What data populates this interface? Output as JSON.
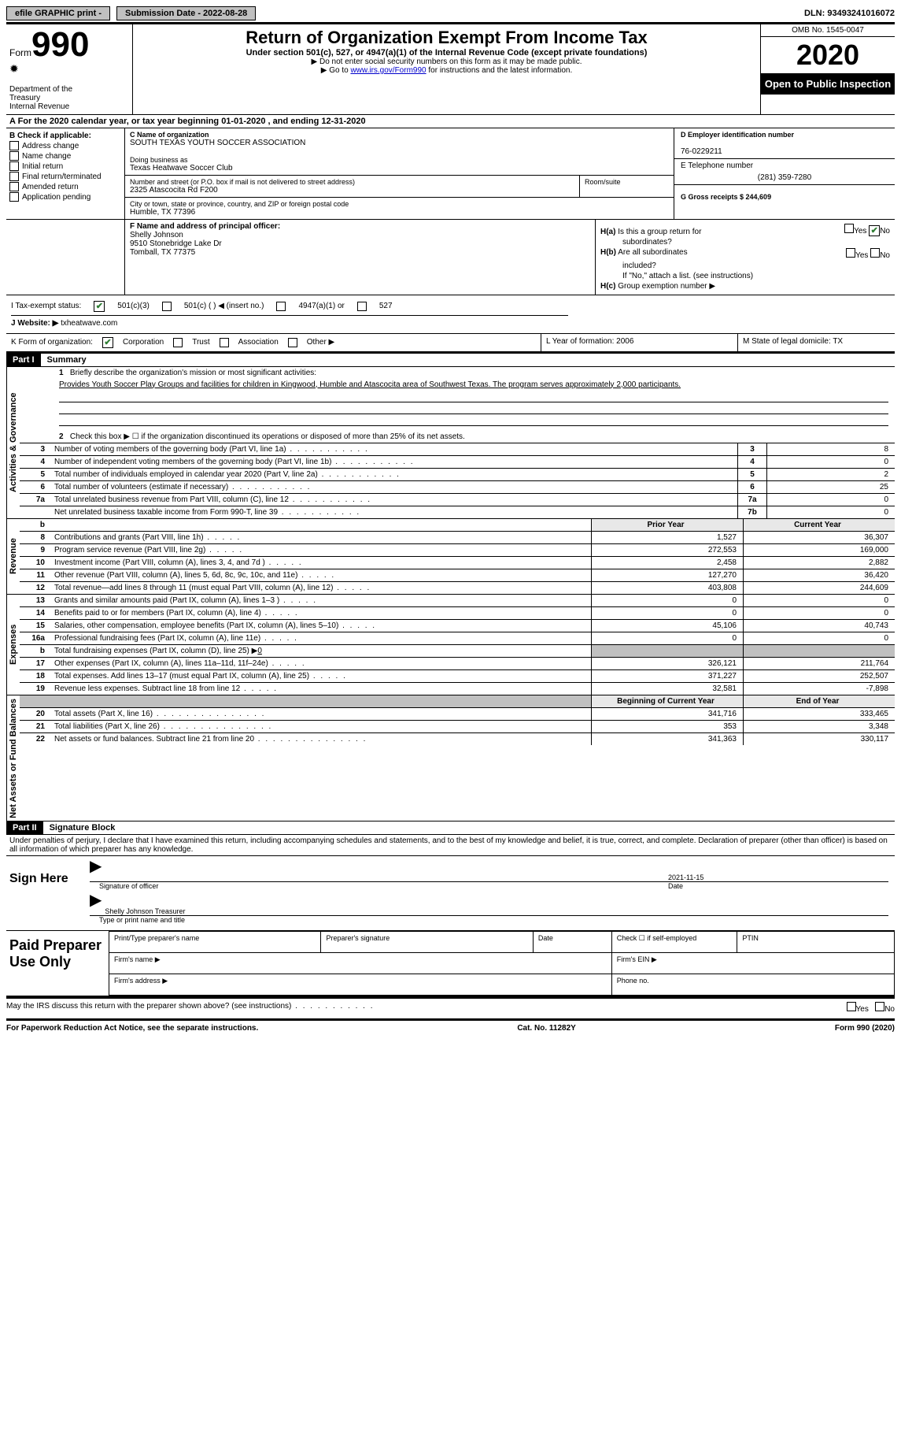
{
  "top": {
    "efile_label": "efile GRAPHIC print -",
    "submission_label": "Submission Date - 2022-08-28",
    "dln_label": "DLN: 93493241016072"
  },
  "header": {
    "form_word": "Form",
    "form_number": "990",
    "dept1": "Department of the",
    "dept2": "Treasury",
    "dept3": "Internal Revenue",
    "title": "Return of Organization Exempt From Income Tax",
    "subtitle": "Under section 501(c), 527, or 4947(a)(1) of the Internal Revenue Code (except private foundations)",
    "note1": "▶ Do not enter social security numbers on this form as it may be made public.",
    "note2a": "▶ Go to ",
    "note2_link": "www.irs.gov/Form990",
    "note2b": " for instructions and the latest information.",
    "omb": "OMB No. 1545-0047",
    "year": "2020",
    "open_public": "Open to Public Inspection"
  },
  "row_a": "A For the 2020 calendar year, or tax year beginning 01-01-2020    , and ending 12-31-2020",
  "block_b": {
    "title": "B Check if applicable:",
    "opts": [
      "Address change",
      "Name change",
      "Initial return",
      "Final return/terminated",
      "Amended return",
      "Application pending"
    ]
  },
  "block_c": {
    "name_label": "C Name of organization",
    "name": "SOUTH TEXAS YOUTH SOCCER ASSOCIATION",
    "dba_label": "Doing business as",
    "dba": "Texas Heatwave Soccer Club",
    "street_label": "Number and street (or P.O. box if mail is not delivered to street address)",
    "street": "2325 Atascocita Rd F200",
    "room_label": "Room/suite",
    "city_label": "City or town, state or province, country, and ZIP or foreign postal code",
    "city": "Humble, TX   77396"
  },
  "block_d": {
    "ein_label": "D Employer identification number",
    "ein": "76-0229211",
    "phone_label": "E Telephone number",
    "phone": "(281) 359-7280",
    "gross_label": "G Gross receipts $ 244,609"
  },
  "block_f": {
    "label": "F  Name and address of principal officer:",
    "line1": "Shelly Johnson",
    "line2": "9510 Stonebridge Lake Dr",
    "line3": "Tomball, TX   77375"
  },
  "block_h": {
    "ha_label": "H(a)",
    "ha_text1": "Is this a group return for",
    "ha_text2": "subordinates?",
    "hb_label": "H(b)",
    "hb_text1": "Are all subordinates",
    "hb_text2": "included?",
    "h_note": "If \"No,\" attach a list. (see instructions)",
    "hc_label": "H(c)",
    "hc_text": "Group exemption number ▶",
    "yes": "Yes",
    "no": "No"
  },
  "row_i": {
    "label": "I   Tax-exempt status:",
    "opt1": "501(c)(3)",
    "opt2": "501(c) (   ) ◀ (insert no.)",
    "opt3": "4947(a)(1) or",
    "opt4": "527"
  },
  "row_j": {
    "label": "J  Website: ▶ ",
    "value": "txheatwave.com"
  },
  "row_k": {
    "label": "K Form of organization:",
    "opt1": "Corporation",
    "opt2": "Trust",
    "opt3": "Association",
    "opt4": "Other ▶",
    "l_label": "L Year of formation: 2006",
    "m_label": "M State of legal domicile: TX"
  },
  "part1": {
    "header": "Part I",
    "title": "Summary",
    "q1_label": "1",
    "q1_text": "Briefly describe the organization's mission or most significant activities:",
    "q1_desc": "Provides Youth Soccer Play Groups and facilities for children in Kingwood, Humble and Atascocita area of Southwest Texas. The program serves approximately 2,000 participants.",
    "q2_label": "2",
    "q2_text": "Check this box ▶ ☐  if the organization discontinued its operations or disposed of more than 25% of its net assets.",
    "lines_gov": [
      {
        "num": "3",
        "desc": "Number of voting members of the governing body (Part VI, line 1a)",
        "box": "3",
        "val": "8"
      },
      {
        "num": "4",
        "desc": "Number of independent voting members of the governing body (Part VI, line 1b)",
        "box": "4",
        "val": "0"
      },
      {
        "num": "5",
        "desc": "Total number of individuals employed in calendar year 2020 (Part V, line 2a)",
        "box": "5",
        "val": "2"
      },
      {
        "num": "6",
        "desc": "Total number of volunteers (estimate if necessary)",
        "box": "6",
        "val": "25"
      },
      {
        "num": "7a",
        "desc": "Total unrelated business revenue from Part VIII, column (C), line 12",
        "box": "7a",
        "val": "0"
      },
      {
        "num": "",
        "desc": "Net unrelated business taxable income from Form 990-T, line 39",
        "box": "7b",
        "val": "0"
      }
    ],
    "col_prior": "Prior Year",
    "col_current": "Current Year",
    "b_label": "b",
    "lines_rev": [
      {
        "num": "8",
        "desc": "Contributions and grants (Part VIII, line 1h)",
        "prior": "1,527",
        "current": "36,307"
      },
      {
        "num": "9",
        "desc": "Program service revenue (Part VIII, line 2g)",
        "prior": "272,553",
        "current": "169,000"
      },
      {
        "num": "10",
        "desc": "Investment income (Part VIII, column (A), lines 3, 4, and 7d )",
        "prior": "2,458",
        "current": "2,882"
      },
      {
        "num": "11",
        "desc": "Other revenue (Part VIII, column (A), lines 5, 6d, 8c, 9c, 10c, and 11e)",
        "prior": "127,270",
        "current": "36,420"
      },
      {
        "num": "12",
        "desc": "Total revenue—add lines 8 through 11 (must equal Part VIII, column (A), line 12)",
        "prior": "403,808",
        "current": "244,609"
      }
    ],
    "lines_exp": [
      {
        "num": "13",
        "desc": "Grants and similar amounts paid (Part IX, column (A), lines 1–3 )",
        "prior": "0",
        "current": "0"
      },
      {
        "num": "14",
        "desc": "Benefits paid to or for members (Part IX, column (A), line 4)",
        "prior": "0",
        "current": "0"
      },
      {
        "num": "15",
        "desc": "Salaries, other compensation, employee benefits (Part IX, column (A), lines 5–10)",
        "prior": "45,106",
        "current": "40,743"
      },
      {
        "num": "16a",
        "desc": "Professional fundraising fees (Part IX, column (A), line 11e)",
        "prior": "0",
        "current": "0"
      }
    ],
    "line_16b_num": "b",
    "line_16b_desc": "Total fundraising expenses (Part IX, column (D), line 25) ▶",
    "line_16b_val": "0",
    "lines_exp2": [
      {
        "num": "17",
        "desc": "Other expenses (Part IX, column (A), lines 11a–11d, 11f–24e)",
        "prior": "326,121",
        "current": "211,764"
      },
      {
        "num": "18",
        "desc": "Total expenses. Add lines 13–17 (must equal Part IX, column (A), line 25)",
        "prior": "371,227",
        "current": "252,507"
      },
      {
        "num": "19",
        "desc": "Revenue less expenses. Subtract line 18 from line 12",
        "prior": "32,581",
        "current": "-7,898"
      }
    ],
    "col_begin": "Beginning of Current Year",
    "col_end": "End of Year",
    "lines_net": [
      {
        "num": "20",
        "desc": "Total assets (Part X, line 16)",
        "prior": "341,716",
        "current": "333,465"
      },
      {
        "num": "21",
        "desc": "Total liabilities (Part X, line 26)",
        "prior": "353",
        "current": "3,348"
      },
      {
        "num": "22",
        "desc": "Net assets or fund balances. Subtract line 21 from line 20",
        "prior": "341,363",
        "current": "330,117"
      }
    ]
  },
  "part2": {
    "header": "Part II",
    "title": "Signature Block",
    "declaration": "Under penalties of perjury, I declare that I have examined this return, including accompanying schedules and statements, and to the best of my knowledge and belief, it is true, correct, and complete. Declaration of preparer (other than officer) is based on all information of which preparer has any knowledge.",
    "sign_here": "Sign Here",
    "sig_officer": "Signature of officer",
    "sig_date": "Date",
    "sig_date_val": "2021-11-15",
    "sig_name": "Shelly Johnson  Treasurer",
    "sig_name_label": "Type or print name and title",
    "paid_label": "Paid Preparer Use Only",
    "pp_name": "Print/Type preparer's name",
    "pp_sig": "Preparer's signature",
    "pp_date": "Date",
    "pp_check": "Check ☐ if self-employed",
    "pp_ptin": "PTIN",
    "pp_firm": "Firm's name    ▶",
    "pp_ein": "Firm's EIN ▶",
    "pp_addr": "Firm's address ▶",
    "pp_phone": "Phone no."
  },
  "footer": {
    "discuss": "May the IRS discuss this return with the preparer shown above? (see instructions)",
    "yes": "Yes",
    "no": "No",
    "paperwork": "For Paperwork Reduction Act Notice, see the separate instructions.",
    "cat": "Cat. No. 11282Y",
    "form": "Form 990 (2020)"
  },
  "labels": {
    "gov": "Activities & Governance",
    "rev": "Revenue",
    "exp": "Expenses",
    "net": "Net Assets or Fund Balances"
  }
}
